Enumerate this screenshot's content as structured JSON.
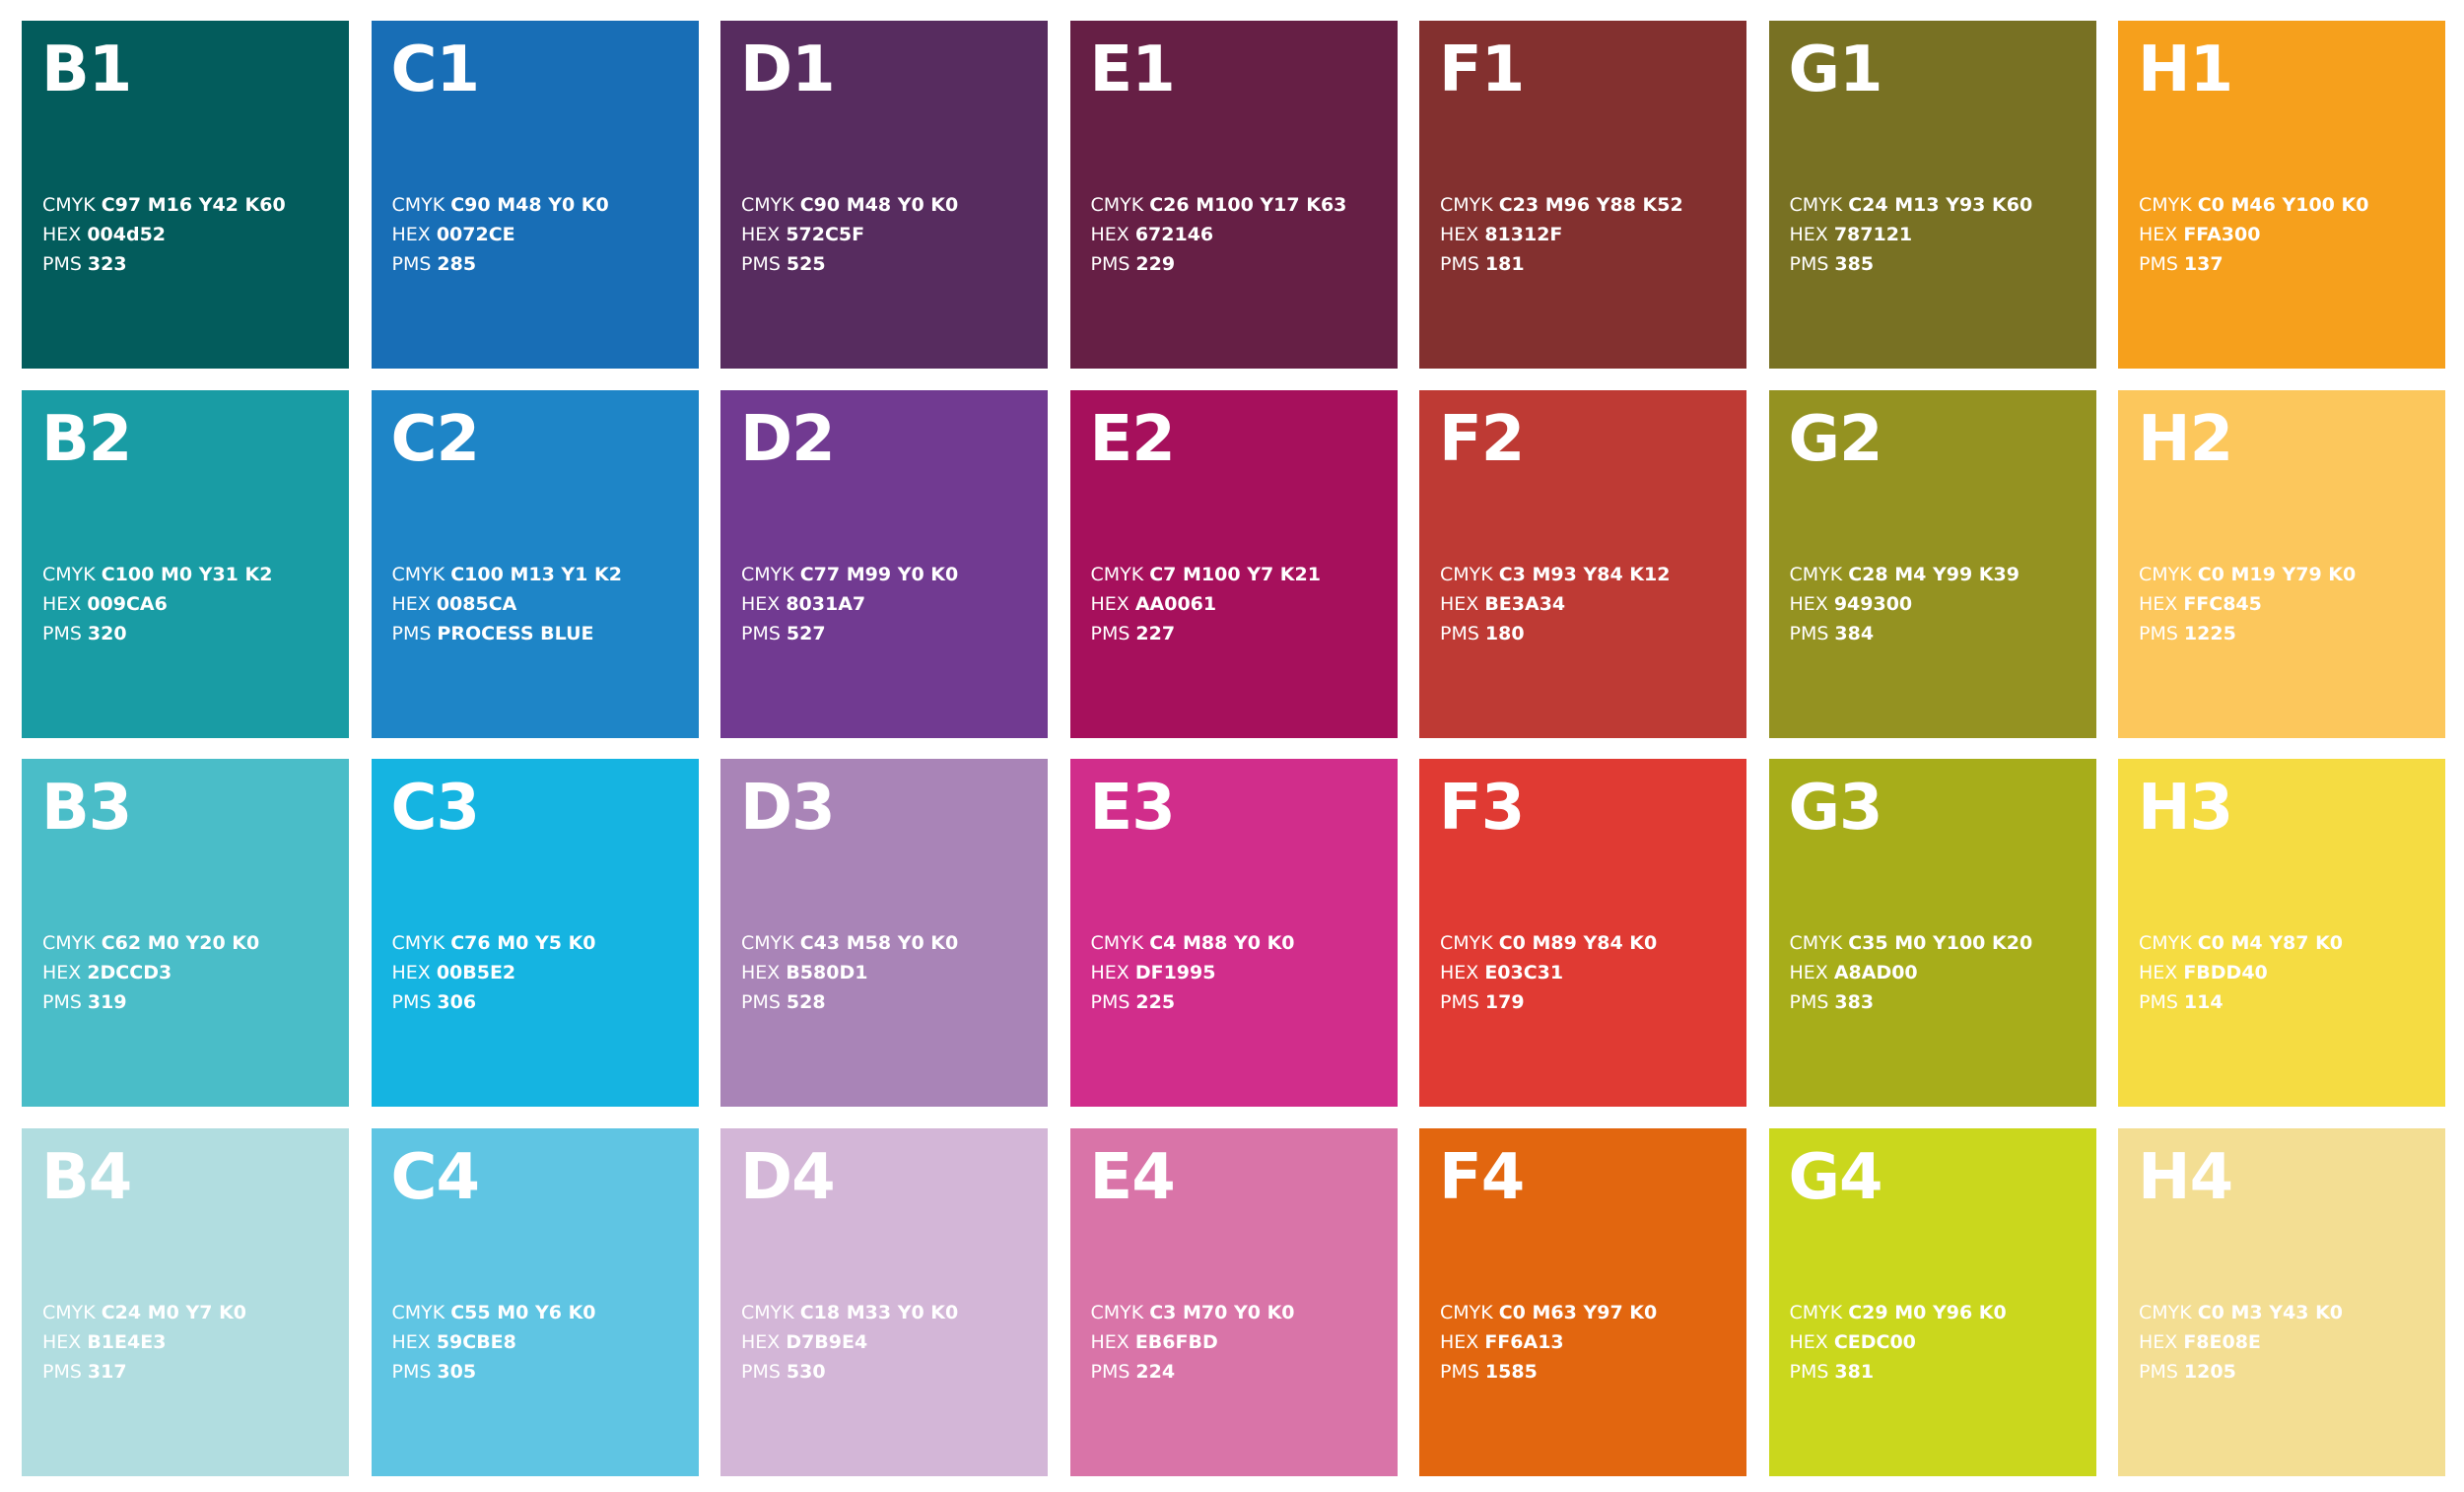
{
  "labels": {
    "cmyk": "CMYK",
    "hex": "HEX",
    "pms": "PMS"
  },
  "swatches": [
    {
      "code": "B1",
      "cmyk": "C97 M16 Y42 K60",
      "hex": "004d52",
      "pms": "323",
      "color": "#035C5C"
    },
    {
      "code": "C1",
      "cmyk": "C90 M48 Y0 K0",
      "hex": "0072CE",
      "pms": "285",
      "color": "#186EB6"
    },
    {
      "code": "D1",
      "cmyk": "C90 M48 Y0 K0",
      "hex": "572C5F",
      "pms": "525",
      "color": "#572C5F"
    },
    {
      "code": "E1",
      "cmyk": "C26 M100 Y17 K63",
      "hex": "672146",
      "pms": "229",
      "color": "#661F45"
    },
    {
      "code": "F1",
      "cmyk": "C23 M96 Y88 K52",
      "hex": "81312F",
      "pms": "181",
      "color": "#83302F"
    },
    {
      "code": "G1",
      "cmyk": "C24 M13 Y93 K60",
      "hex": "787121",
      "pms": "385",
      "color": "#787123"
    },
    {
      "code": "H1",
      "cmyk": "C0 M46 Y100 K0",
      "hex": "FFA300",
      "pms": "137",
      "color": "#F6A01C"
    },
    {
      "code": "B2",
      "cmyk": "C100 M0 Y31 K2",
      "hex": "009CA6",
      "pms": "320",
      "color": "#199CA4"
    },
    {
      "code": "C2",
      "cmyk": "C100 M13 Y1 K2",
      "hex": "0085CA",
      "pms": "PROCESS BLUE",
      "color": "#1E85C7"
    },
    {
      "code": "D2",
      "cmyk": "C77 M99 Y0 K0",
      "hex": "8031A7",
      "pms": "527",
      "color": "#713A91"
    },
    {
      "code": "E2",
      "cmyk": "C7 M100 Y7 K21",
      "hex": "AA0061",
      "pms": "227",
      "color": "#A6105C"
    },
    {
      "code": "F2",
      "cmyk": "C3 M93 Y84 K12",
      "hex": "BE3A34",
      "pms": "180",
      "color": "#BE3A34"
    },
    {
      "code": "G2",
      "cmyk": "C28 M4 Y99 K39",
      "hex": "949300",
      "pms": "384",
      "color": "#949221"
    },
    {
      "code": "H2",
      "cmyk": "C0 M19 Y79 K0",
      "hex": "FFC845",
      "pms": "1225",
      "color": "#FCC75C"
    },
    {
      "code": "B3",
      "cmyk": "C62 M0 Y20 K0",
      "hex": "2DCCD3",
      "pms": "319",
      "color": "#4ABDC8"
    },
    {
      "code": "C3",
      "cmyk": "C76 M0 Y5 K0",
      "hex": "00B5E2",
      "pms": "306",
      "color": "#15B4E1"
    },
    {
      "code": "D3",
      "cmyk": "C43 M58 Y0 K0",
      "hex": "B580D1",
      "pms": "528",
      "color": "#A984B7"
    },
    {
      "code": "E3",
      "cmyk": "C4 M88 Y0 K0",
      "hex": "DF1995",
      "pms": "225",
      "color": "#D12D8B"
    },
    {
      "code": "F3",
      "cmyk": "C0 M89 Y84 K0",
      "hex": "E03C31",
      "pms": "179",
      "color": "#E03A33"
    },
    {
      "code": "G3",
      "cmyk": "C35 M0 Y100 K20",
      "hex": "A8AD00",
      "pms": "383",
      "color": "#A7AD1A"
    },
    {
      "code": "H3",
      "cmyk": "C0 M4 Y87 K0",
      "hex": "FBDD40",
      "pms": "114",
      "color": "#F5DC42"
    },
    {
      "code": "B4",
      "cmyk": "C24 M0 Y7 K0",
      "hex": "B1E4E3",
      "pms": "317",
      "color": "#B1DDE0"
    },
    {
      "code": "C4",
      "cmyk": "C55 M0 Y6 K0",
      "hex": "59CBE8",
      "pms": "305",
      "color": "#5FC5E3"
    },
    {
      "code": "D4",
      "cmyk": "C18 M33 Y0 K0",
      "hex": "D7B9E4",
      "pms": "530",
      "color": "#D3B6D7"
    },
    {
      "code": "E4",
      "cmyk": "C3 M70 Y0 K0",
      "hex": "EB6FBD",
      "pms": "224",
      "color": "#D974A8"
    },
    {
      "code": "F4",
      "cmyk": "C0 M63 Y97 K0",
      "hex": "FF6A13",
      "pms": "1585",
      "color": "#E2660F"
    },
    {
      "code": "G4",
      "cmyk": "C29 M0 Y96 K0",
      "hex": "CEDC00",
      "pms": "381",
      "color": "#CAD71D"
    },
    {
      "code": "H4",
      "cmyk": "C0 M3 Y43 K0",
      "hex": "F8E08E",
      "pms": "1205",
      "color": "#F3DE93"
    }
  ]
}
